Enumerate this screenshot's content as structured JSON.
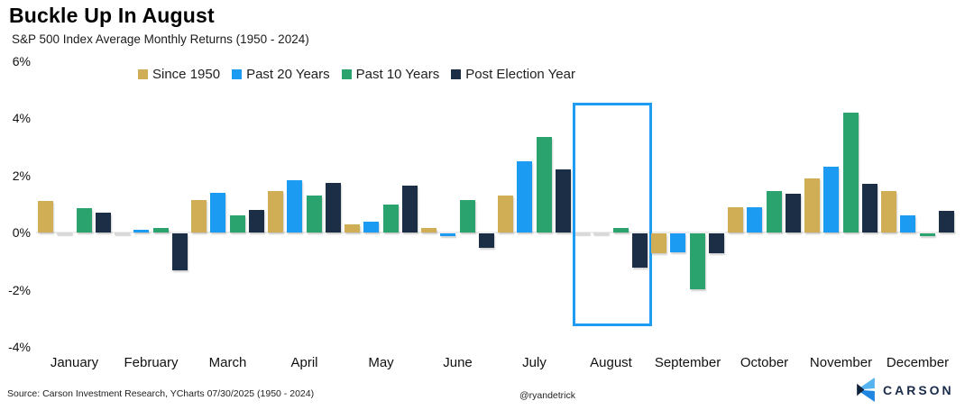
{
  "header": {
    "title": "Buckle Up In August",
    "subtitle": "S&P 500 Index Average Monthly Returns (1950 - 2024)"
  },
  "chart_data": {
    "type": "bar",
    "categories": [
      "January",
      "February",
      "March",
      "April",
      "May",
      "June",
      "July",
      "August",
      "September",
      "October",
      "November",
      "December"
    ],
    "series": [
      {
        "name": "Since 1950",
        "color": "#d0ae55",
        "values": [
          1.1,
          0.0,
          1.15,
          1.45,
          0.3,
          0.15,
          1.3,
          0.0,
          -0.7,
          0.9,
          1.9,
          1.45
        ]
      },
      {
        "name": "Past 20 Years",
        "color": "#1b9cf2",
        "values": [
          0.0,
          0.1,
          1.4,
          1.85,
          0.4,
          -0.1,
          2.5,
          0.0,
          -0.65,
          0.9,
          2.3,
          0.6
        ]
      },
      {
        "name": "Past 10 Years",
        "color": "#2aa36e",
        "values": [
          0.85,
          0.15,
          0.6,
          1.3,
          1.0,
          1.15,
          3.35,
          0.15,
          -1.95,
          1.45,
          4.2,
          -0.1
        ]
      },
      {
        "name": "Post Election Year",
        "color": "#1c2e45",
        "values": [
          0.7,
          -1.3,
          0.8,
          1.75,
          1.65,
          -0.5,
          2.2,
          -1.2,
          -0.7,
          1.35,
          1.7,
          0.75
        ]
      }
    ],
    "ylim": [
      -4,
      6
    ],
    "yticks": [
      "6%",
      "4%",
      "2%",
      "0%",
      "-2%",
      "-4%"
    ],
    "grid": false,
    "legend_position": "top",
    "highlight": {
      "category": "August",
      "color": "#1e9bf2",
      "from_pct": 4.55,
      "to_pct": -3.27
    }
  },
  "footer": {
    "source": "Source: Carson Investment Research, YCharts 07/30/2025 (1950 - 2024)",
    "handle": "@ryandetrick",
    "brand": "CARSON"
  },
  "icons": {
    "brand_mark": "carson-chevron-icon",
    "brand_colors": {
      "light": "#55b3ef",
      "mid": "#1e86e0",
      "dark": "#10233c"
    }
  }
}
